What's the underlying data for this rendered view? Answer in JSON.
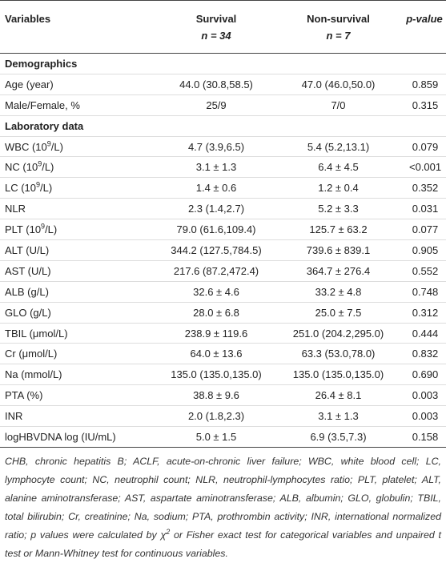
{
  "header": {
    "variables": "Variables",
    "survival": "Survival",
    "survival_n": "n = 34",
    "nonsurvival": "Non-survival",
    "nonsurvival_n": "n = 7",
    "p": "p-value"
  },
  "rows": [
    {
      "section": "Demographics"
    },
    {
      "label": [
        "Age (year)"
      ],
      "survival": "44.0 (30.8,58.5)",
      "nonsurvival": "47.0 (46.0,50.0)",
      "p": "0.859"
    },
    {
      "label": [
        "Male/Female, %"
      ],
      "survival": "25/9",
      "nonsurvival": "7/0",
      "p": "0.315"
    },
    {
      "section": "Laboratory data"
    },
    {
      "label": [
        "WBC (10",
        {
          "sup": "9"
        },
        "/L)"
      ],
      "survival": "4.7 (3.9,6.5)",
      "nonsurvival": "5.4 (5.2,13.1)",
      "p": "0.079"
    },
    {
      "label": [
        "NC (10",
        {
          "sup": "9"
        },
        "/L)"
      ],
      "survival": "3.1 ± 1.3",
      "nonsurvival": "6.4 ± 4.5",
      "p": "<0.001"
    },
    {
      "label": [
        "LC (10",
        {
          "sup": "9"
        },
        "/L)"
      ],
      "survival": "1.4 ± 0.6",
      "nonsurvival": "1.2 ± 0.4",
      "p": "0.352"
    },
    {
      "label": [
        "NLR"
      ],
      "survival": "2.3 (1.4,2.7)",
      "nonsurvival": "5.2 ± 3.3",
      "p": "0.031"
    },
    {
      "label": [
        "PLT (10",
        {
          "sup": "9"
        },
        "/L)"
      ],
      "survival": "79.0 (61.6,109.4)",
      "nonsurvival": "125.7 ± 63.2",
      "p": "0.077"
    },
    {
      "label": [
        "ALT (U/L)"
      ],
      "survival": "344.2 (127.5,784.5)",
      "nonsurvival": "739.6 ± 839.1",
      "p": "0.905"
    },
    {
      "label": [
        "AST (U/L)"
      ],
      "survival": "217.6 (87.2,472.4)",
      "nonsurvival": "364.7 ± 276.4",
      "p": "0.552"
    },
    {
      "label": [
        "ALB (g/L)"
      ],
      "survival": "32.6 ± 4.6",
      "nonsurvival": "33.2 ± 4.8",
      "p": "0.748"
    },
    {
      "label": [
        "GLO (g/L)"
      ],
      "survival": "28.0 ± 6.8",
      "nonsurvival": "25.0 ± 7.5",
      "p": "0.312"
    },
    {
      "label": [
        "TBIL (μmol/L)"
      ],
      "survival": "238.9 ± 119.6",
      "nonsurvival": "251.0 (204.2,295.0)",
      "p": "0.444"
    },
    {
      "label": [
        "Cr (μmol/L)"
      ],
      "survival": "64.0 ± 13.6",
      "nonsurvival": "63.3 (53.0,78.0)",
      "p": "0.832"
    },
    {
      "label": [
        "Na (mmol/L)"
      ],
      "survival": "135.0 (135.0,135.0)",
      "nonsurvival": "135.0 (135.0,135.0)",
      "p": "0.690"
    },
    {
      "label": [
        "PTA (%)"
      ],
      "survival": "38.8 ± 9.6",
      "nonsurvival": "26.4 ± 8.1",
      "p": "0.003"
    },
    {
      "label": [
        "INR"
      ],
      "survival": "2.0 (1.8,2.3)",
      "nonsurvival": "3.1 ± 1.3",
      "p": "0.003"
    },
    {
      "label": [
        "logHBVDNA log (IU/mL)"
      ],
      "survival": "5.0 ± 1.5",
      "nonsurvival": "6.9 (3.5,7.3)",
      "p": "0.158"
    }
  ],
  "footnote": [
    "CHB, chronic hepatitis B; ACLF, acute-on-chronic liver failure; WBC, white blood cell; LC, lymphocyte count; NC, neutrophil count; NLR, neutrophil-lymphocytes ratio; PLT, platelet; ALT, alanine aminotransferase; AST, aspartate aminotransferase; ALB, albumin; GLO, globulin; TBIL, total bilirubin; Cr, creatinine; Na, sodium; PTA, prothrombin activity; INR, international normalized ratio; p values were calculated by χ",
    {
      "sup": "2"
    },
    " or Fisher exact test for categorical variables and unpaired t test or Mann-Whitney test for continuous variables."
  ]
}
